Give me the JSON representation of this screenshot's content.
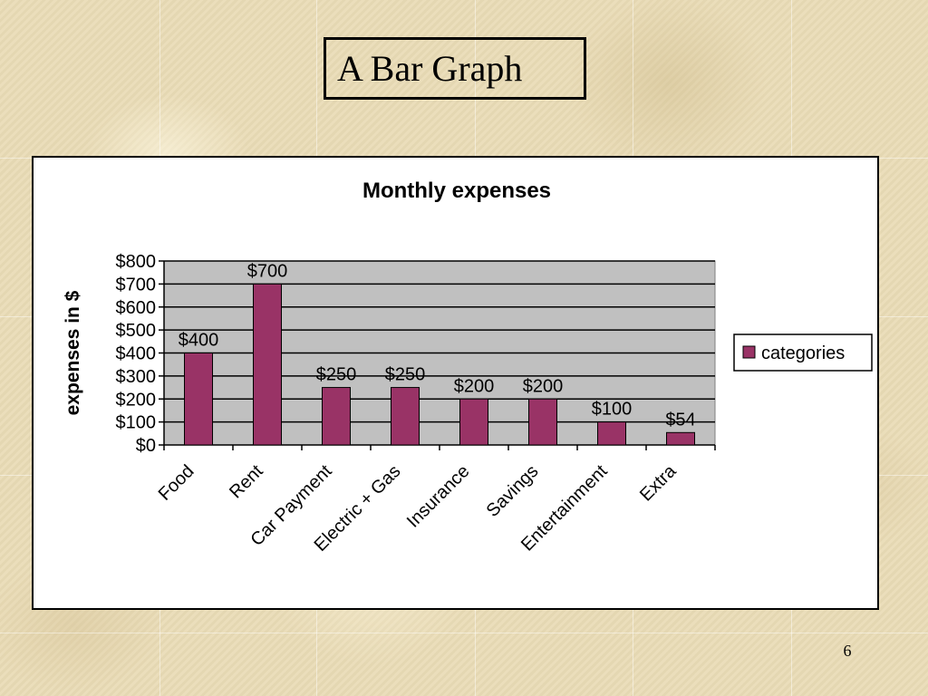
{
  "slide": {
    "title": "A Bar Graph",
    "page_number": "6"
  },
  "colors": {
    "bar_fill": "#993366",
    "plot_bg": "#c0c0c0",
    "grid": "#000000"
  },
  "chart_data": {
    "type": "bar",
    "title": "Monthly expenses",
    "xlabel": "",
    "ylabel": "expenses in $",
    "categories": [
      "Food",
      "Rent",
      "Car Payment",
      "Electric + Gas",
      "Insurance",
      "Savings",
      "Entertainment",
      "Extra"
    ],
    "series": [
      {
        "name": "categories",
        "values": [
          400,
          700,
          250,
          250,
          200,
          200,
          100,
          54
        ]
      }
    ],
    "data_labels": [
      "$400",
      "$700",
      "$250",
      "$250",
      "$200",
      "$200",
      "$100",
      "$54"
    ],
    "ylim": [
      0,
      800
    ],
    "yticks": [
      0,
      100,
      200,
      300,
      400,
      500,
      600,
      700,
      800
    ],
    "ytick_labels": [
      "$0",
      "$100",
      "$200",
      "$300",
      "$400",
      "$500",
      "$600",
      "$700",
      "$800"
    ],
    "grid": true,
    "legend_position": "right"
  }
}
